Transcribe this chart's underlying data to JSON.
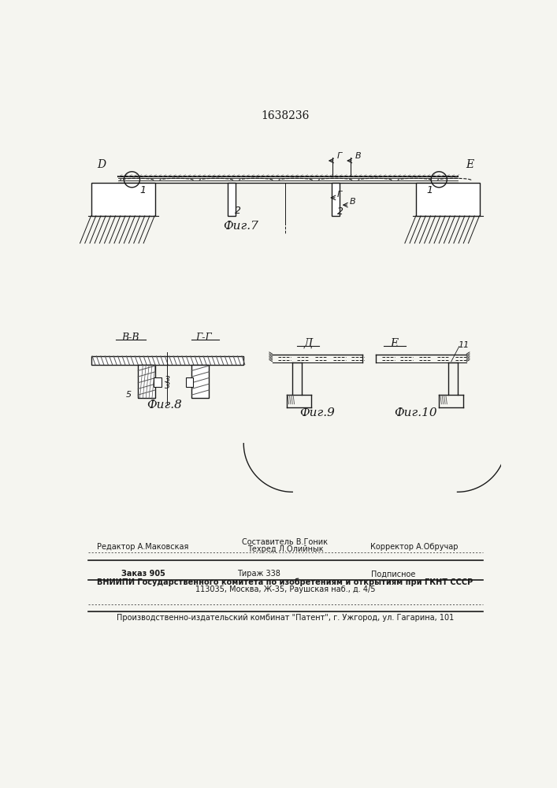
{
  "title": "1638236",
  "fig1_label": "Фиг.7",
  "fig8_label": "Фиг.8",
  "fig9_label": "Фиг.9",
  "fig10_label": "Фиг.10",
  "bg_color": "#f5f5f0",
  "line_color": "#1a1a1a",
  "footer_line1_left": "Редактор А.Маковская",
  "footer_line1_center_top": "Составитель В.Гоник",
  "footer_line1_center_bot": "Техред Л.Олийнык",
  "footer_line1_right": "Корректор А.Обручар",
  "footer_line2_col1": "Заказ 905",
  "footer_line2_col2": "Тираж 338",
  "footer_line2_col3": "Подписное",
  "footer_line3": "ВНИИПИ Государственного комитета по изобретениям и открытиям при ГКНТ СССР",
  "footer_line4": "113035, Москва, Ж-35, Раушская наб., д. 4/5",
  "footer_line5": "Производственно-издательский комбинат \"Патент\", г. Ужгород, ул. Гагарина, 101"
}
